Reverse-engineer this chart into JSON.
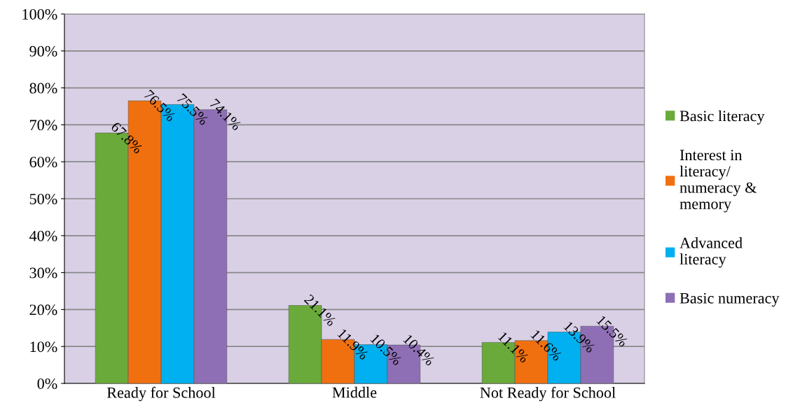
{
  "chart_data": {
    "type": "bar",
    "categories": [
      "Ready for School",
      "Middle",
      "Not Ready for School"
    ],
    "series": [
      {
        "name": "Basic literacy",
        "color": "#6aaa3a",
        "values": [
          67.8,
          21.1,
          11.1
        ]
      },
      {
        "name": "Interest in\nliteracy/\nnumeracy &\nmemory",
        "color": "#f07010",
        "values": [
          76.5,
          11.9,
          11.6
        ]
      },
      {
        "name": "Advanced\nliteracy",
        "color": "#00b0f0",
        "values": [
          75.5,
          10.5,
          13.9
        ]
      },
      {
        "name": "Basic numeracy",
        "color": "#8e6fb5",
        "values": [
          74.1,
          10.4,
          15.5
        ]
      }
    ],
    "ylim": [
      0,
      100
    ],
    "yticks": [
      {
        "value": 0,
        "label": "0%"
      },
      {
        "value": 10,
        "label": "10%"
      },
      {
        "value": 20,
        "label": "20%"
      },
      {
        "value": 30,
        "label": "30%"
      },
      {
        "value": 40,
        "label": "40%"
      },
      {
        "value": 50,
        "label": "50%"
      },
      {
        "value": 60,
        "label": "60%"
      },
      {
        "value": 70,
        "label": "70%"
      },
      {
        "value": 80,
        "label": "80%"
      },
      {
        "value": 90,
        "label": "90%"
      },
      {
        "value": 100,
        "label": "100%"
      }
    ],
    "value_labels": [
      [
        "67.8%",
        "21.1%",
        "11.1%"
      ],
      [
        "76.5%",
        "11.9%",
        "11.6%"
      ],
      [
        "75.5%",
        "10.5%",
        "13.9%"
      ],
      [
        "74.1%",
        "10.4%",
        "15.5%"
      ]
    ],
    "grid": "y",
    "legend": "right"
  }
}
